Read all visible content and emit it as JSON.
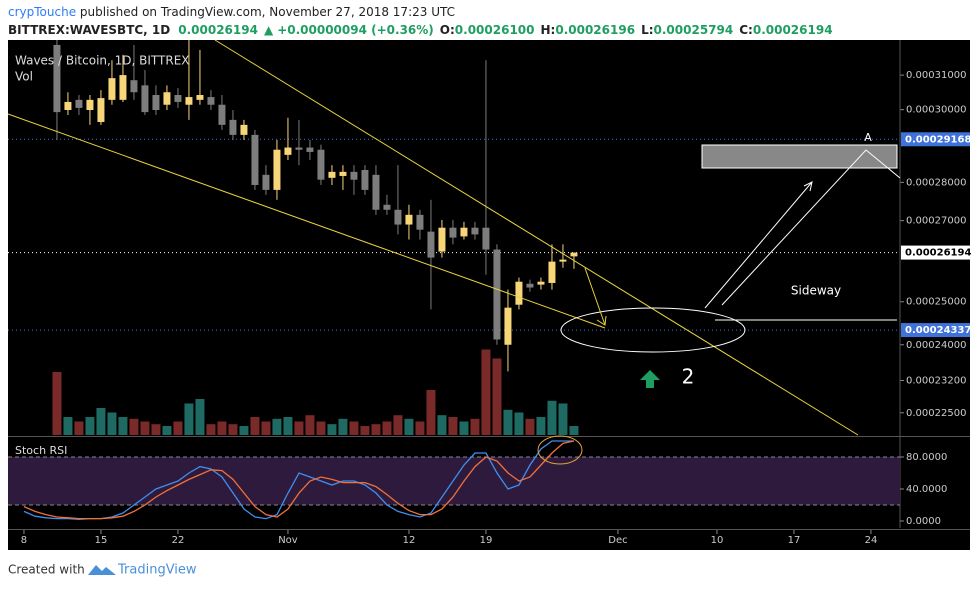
{
  "header": {
    "author": "crypTouche",
    "published": " published on TradingView.com, November 27, 2018 17:23 UTC",
    "symbol": "BITTREX:WAVESBTC, 1D",
    "last": "0.00026194",
    "change": "+0.00000094 (+0.36%)",
    "ohlc": [
      {
        "label": "O:",
        "value": "0.00026100"
      },
      {
        "label": "H:",
        "value": "0.00026196"
      },
      {
        "label": "L:",
        "value": "0.00025794"
      },
      {
        "label": "C:",
        "value": "0.00026194"
      }
    ]
  },
  "chart_data": [
    {
      "type": "candlestick",
      "legend": "Waves / Bitcoin, 1D, BITTREX",
      "volume_label": "Vol",
      "log_scale": true,
      "xlim": [
        -1.45,
        79.64
      ],
      "xticks": [
        {
          "value": 0,
          "label": "8"
        },
        {
          "value": 7,
          "label": "15"
        },
        {
          "value": 14,
          "label": "22"
        },
        {
          "value": 24,
          "label": "Nov"
        },
        {
          "value": 35,
          "label": "12"
        },
        {
          "value": 42,
          "label": "19"
        },
        {
          "value": 54,
          "label": "Dec"
        },
        {
          "value": 63,
          "label": "10"
        },
        {
          "value": 70,
          "label": "17"
        },
        {
          "value": 77,
          "label": "24"
        }
      ],
      "ylim": [
        0.0002203,
        0.0003205
      ],
      "yticks": [
        {
          "value": 0.00031,
          "label": "0.00031000"
        },
        {
          "value": 0.0003,
          "label": "0.00030000"
        },
        {
          "value": 0.00028,
          "label": "0.00028000"
        },
        {
          "value": 0.00027,
          "label": "0.00027000"
        },
        {
          "value": 0.00025,
          "label": "0.00025000"
        },
        {
          "value": 0.00024,
          "label": "0.00024000"
        },
        {
          "value": 0.000232,
          "label": "0.00023200"
        },
        {
          "value": 0.000225,
          "label": "0.00022500"
        }
      ],
      "price_lines": [
        {
          "value": 0.00029168,
          "label": "0.00029168",
          "color": "#3f73d9"
        },
        {
          "value": 0.00026194,
          "label": "0.00026194",
          "color": "#ffffff"
        },
        {
          "value": 0.00024337,
          "label": "0.00024337",
          "color": "#3f73d9"
        }
      ],
      "up_color": "#f7d67a",
      "down_color": "#7d7d7d",
      "volume_up_color": "#1f6b63",
      "volume_down_color": "#7b2a2a",
      "x": [
        3,
        4,
        5,
        6,
        7,
        8,
        9,
        10,
        11,
        12,
        13,
        14,
        15,
        16,
        17,
        18,
        19,
        20,
        21,
        22,
        23,
        24,
        25,
        26,
        27,
        28,
        29,
        30,
        31,
        32,
        33,
        34,
        35,
        36,
        37,
        38,
        39,
        40,
        41,
        42,
        43,
        44,
        45,
        46,
        47,
        48,
        49,
        50
      ],
      "open": [
        0.000319,
        0.0002999,
        0.0003028,
        0.0002999,
        0.0002965,
        0.0003028,
        0.0003028,
        0.0003085,
        0.000307,
        0.0003042,
        0.0003014,
        0.0003042,
        0.0003014,
        0.0003028,
        0.0003036,
        0.0003014,
        0.0002971,
        0.0002929,
        0.0002929,
        0.000282,
        0.000278,
        0.0002874,
        0.0002894,
        0.0002894,
        0.0002888,
        0.0002812,
        0.0002817,
        0.0002828,
        0.0002833,
        0.000282,
        0.0002741,
        0.0002728,
        0.000269,
        0.0002715,
        0.0002672,
        0.0002622,
        0.0002682,
        0.000266,
        0.0002682,
        0.0002682,
        0.0002627,
        0.00024,
        0.0002493,
        0.0002543,
        0.0002541,
        0.0002545,
        0.0002597,
        0.000261
      ],
      "high": [
        0.0003205,
        0.000305,
        0.0003042,
        0.0003042,
        0.0003056,
        0.0003144,
        0.000316,
        0.000319,
        0.0003115,
        0.000307,
        0.000307,
        0.0003062,
        0.0003205,
        0.0003175,
        0.0003056,
        0.0003042,
        0.0002999,
        0.0002971,
        0.0002943,
        0.0002846,
        0.0002915,
        0.0002977,
        0.0002971,
        0.0002915,
        0.0002902,
        0.0002846,
        0.0002846,
        0.0002846,
        0.0002846,
        0.0002846,
        0.0002767,
        0.0002846,
        0.0002741,
        0.0002728,
        0.0002754,
        0.0002702,
        0.0002702,
        0.0002697,
        0.0002697,
        0.0003144,
        0.000264,
        0.0002529,
        0.0002558,
        0.0002553,
        0.0002558,
        0.000264,
        0.000264,
        0.00026196
      ],
      "low": [
        0.0002915,
        0.0002985,
        0.0002985,
        0.0002957,
        0.0002957,
        0.0003014,
        0.0003022,
        0.0003028,
        0.0002985,
        0.0002985,
        0.0002999,
        0.0003005,
        0.0002971,
        0.0003014,
        0.0002999,
        0.0002943,
        0.0002915,
        0.0002915,
        0.000278,
        0.0002767,
        0.0002754,
        0.000286,
        0.0002846,
        0.000286,
        0.0002793,
        0.0002793,
        0.000278,
        0.0002767,
        0.0002767,
        0.0002715,
        0.0002715,
        0.0002665,
        0.0002652,
        0.0002652,
        0.0002482,
        0.0002607,
        0.000264,
        0.0002652,
        0.0002652,
        0.0002565,
        0.00024,
        0.000234,
        0.0002482,
        0.0002524,
        0.0002529,
        0.0002529,
        0.0002582,
        0.00025794
      ],
      "close": [
        0.0002993,
        0.0003022,
        0.0003005,
        0.0003028,
        0.0003033,
        0.0003091,
        0.00031,
        0.000305,
        0.0002993,
        0.0002999,
        0.000305,
        0.0003022,
        0.0003036,
        0.0003042,
        0.0003014,
        0.0002957,
        0.0002929,
        0.0002957,
        0.0002793,
        0.000278,
        0.0002888,
        0.0002894,
        0.0002888,
        0.0002882,
        0.0002807,
        0.0002828,
        0.0002828,
        0.0002807,
        0.000278,
        0.0002728,
        0.0002728,
        0.000269,
        0.0002715,
        0.0002677,
        0.0002607,
        0.0002682,
        0.0002657,
        0.0002682,
        0.0002665,
        0.0002627,
        0.0002412,
        0.0002486,
        0.0002548,
        0.0002534,
        0.0002548,
        0.0002597,
        0.0002602,
        0.00026194
      ],
      "vlim": [
        0,
        100
      ],
      "volume": [
        70,
        20,
        15,
        20,
        30,
        25,
        20,
        18,
        15,
        12,
        10,
        15,
        35,
        40,
        12,
        15,
        12,
        10,
        20,
        15,
        18,
        20,
        15,
        22,
        15,
        12,
        18,
        15,
        10,
        12,
        15,
        22,
        18,
        15,
        50,
        22,
        20,
        15,
        18,
        95,
        85,
        28,
        25,
        18,
        20,
        38,
        35,
        10
      ]
    },
    {
      "type": "line",
      "title": "Stoch RSI",
      "xlim": [
        -1.45,
        79.64
      ],
      "ylim": [
        -8.75,
        103.75
      ],
      "yticks": [
        {
          "value": 80,
          "label": "80.0000"
        },
        {
          "value": 40,
          "label": "40.0000"
        },
        {
          "value": 0,
          "label": "0.0000"
        }
      ],
      "band": [
        20,
        80
      ],
      "band_color": "#2e1a3d",
      "x": [
        0,
        1,
        2,
        3,
        4,
        5,
        6,
        7,
        8,
        9,
        10,
        11,
        12,
        13,
        14,
        15,
        16,
        17,
        18,
        19,
        20,
        21,
        22,
        23,
        24,
        25,
        26,
        27,
        28,
        29,
        30,
        31,
        32,
        33,
        34,
        35,
        36,
        37,
        38,
        39,
        40,
        41,
        42,
        43,
        44,
        45,
        46,
        47,
        48,
        49,
        50
      ],
      "series": [
        {
          "color": "#3f8ef0",
          "values": [
            12,
            6,
            4,
            3,
            3,
            2,
            3,
            3,
            5,
            10,
            20,
            30,
            40,
            45,
            50,
            60,
            68,
            65,
            55,
            35,
            15,
            5,
            3,
            8,
            35,
            60,
            55,
            50,
            45,
            50,
            50,
            45,
            35,
            20,
            12,
            8,
            5,
            10,
            30,
            50,
            70,
            85,
            85,
            60,
            40,
            45,
            70,
            90,
            100,
            100,
            100
          ]
        },
        {
          "color": "#f0703a",
          "values": [
            18,
            12,
            8,
            5,
            4,
            3,
            3,
            3,
            4,
            6,
            12,
            20,
            30,
            38,
            45,
            52,
            58,
            64,
            63,
            52,
            35,
            18,
            8,
            5,
            15,
            35,
            50,
            55,
            52,
            48,
            48,
            48,
            43,
            33,
            22,
            13,
            8,
            8,
            15,
            30,
            50,
            68,
            80,
            75,
            60,
            50,
            55,
            70,
            85,
            97,
            100
          ]
        }
      ]
    }
  ],
  "annotations": {
    "target": "A",
    "sideway": "Sideway",
    "wave": "2"
  },
  "footer": {
    "created": "Created with",
    "brand": "TradingView"
  }
}
